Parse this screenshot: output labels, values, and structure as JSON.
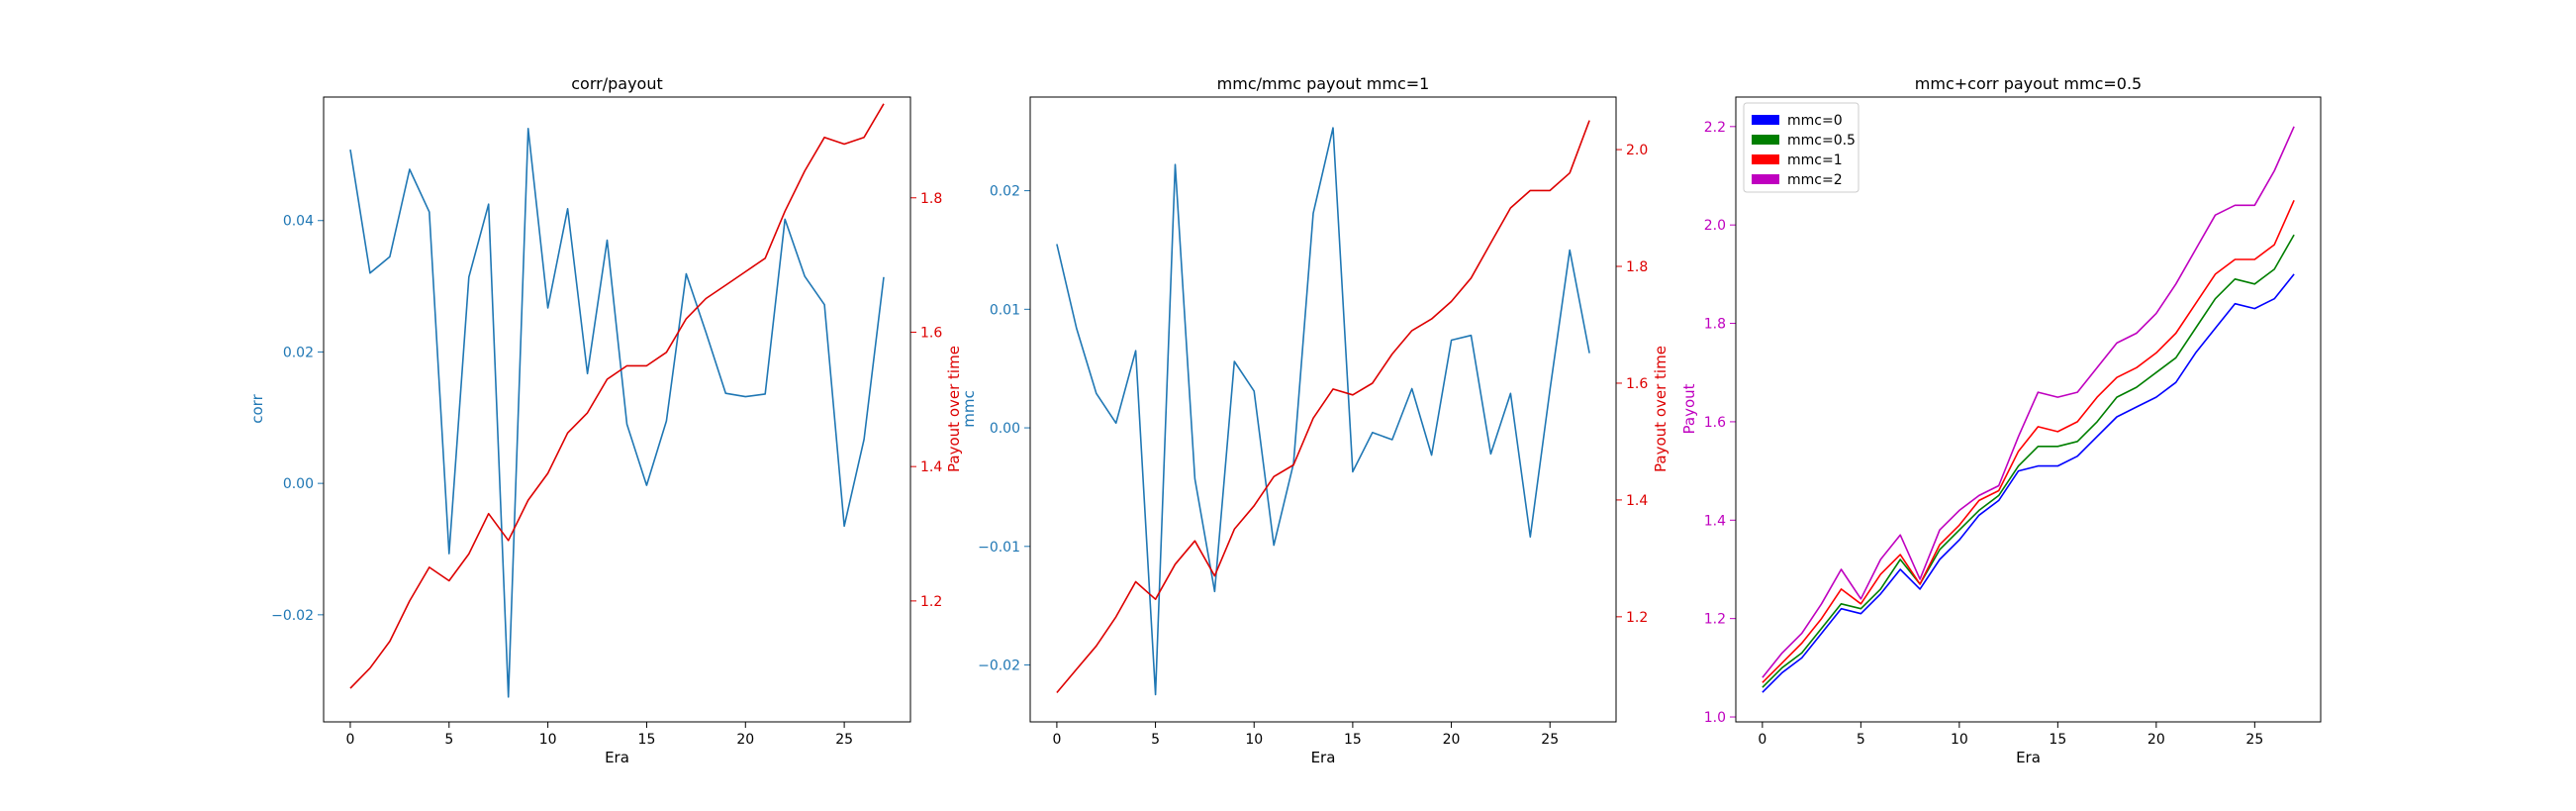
{
  "colors": {
    "corr": "#1f77b4",
    "mmc": "#1f77b4",
    "payout": "#dd0000",
    "right_axis": "#dd0000",
    "payout_axis": "#bf00bf"
  },
  "chart_data": [
    {
      "type": "line",
      "title": "corr/payout",
      "xlabel": "Era",
      "ylabel_left": "corr",
      "ylabel_right": "Payout over time",
      "x": [
        0,
        1,
        2,
        3,
        4,
        5,
        6,
        7,
        8,
        9,
        10,
        11,
        12,
        13,
        14,
        15,
        16,
        17,
        18,
        19,
        20,
        21,
        22,
        23,
        24,
        25,
        26,
        27
      ],
      "xlim": [
        -1.35,
        28.35
      ],
      "xticks": [
        0,
        5,
        10,
        15,
        20,
        25
      ],
      "xtick_labels": [
        "0",
        "5",
        "10",
        "15",
        "20",
        "25"
      ],
      "ylim_left": [
        -0.0363,
        0.0588
      ],
      "yticks_left": [
        -0.02,
        0.0,
        0.02,
        0.04
      ],
      "ytick_labels_left": [
        "−0.02",
        "0.00",
        "0.02",
        "0.04"
      ],
      "ylim_right": [
        1.02,
        1.95
      ],
      "yticks_right": [
        1.2,
        1.4,
        1.6,
        1.8
      ],
      "ytick_labels_right": [
        "1.2",
        "1.4",
        "1.6",
        "1.8"
      ],
      "series": [
        {
          "axis": "left",
          "color_key": "corr",
          "values": [
            0.0508,
            0.032,
            0.0345,
            0.0478,
            0.0413,
            -0.0107,
            0.0314,
            0.0425,
            -0.0325,
            0.054,
            0.0267,
            0.0418,
            0.0167,
            0.037,
            0.009,
            -0.0003,
            0.0095,
            0.0319,
            0.023,
            0.0137,
            0.0132,
            0.0136,
            0.0402,
            0.0315,
            0.0272,
            -0.0065,
            0.0067,
            0.0314
          ]
        },
        {
          "axis": "right",
          "color_key": "payout",
          "values": [
            1.07,
            1.1,
            1.14,
            1.2,
            1.25,
            1.23,
            1.27,
            1.33,
            1.29,
            1.35,
            1.39,
            1.45,
            1.48,
            1.53,
            1.55,
            1.55,
            1.57,
            1.62,
            1.65,
            1.67,
            1.69,
            1.71,
            1.78,
            1.84,
            1.89,
            1.88,
            1.89,
            1.94
          ]
        }
      ]
    },
    {
      "type": "line",
      "title": "mmc/mmc payout mmc=1",
      "xlabel": "Era",
      "ylabel_left": "mmc",
      "ylabel_right": "Payout over time",
      "x": [
        0,
        1,
        2,
        3,
        4,
        5,
        6,
        7,
        8,
        9,
        10,
        11,
        12,
        13,
        14,
        15,
        16,
        17,
        18,
        19,
        20,
        21,
        22,
        23,
        24,
        25,
        26,
        27
      ],
      "xlim": [
        -1.35,
        28.35
      ],
      "xticks": [
        0,
        5,
        10,
        15,
        20,
        25
      ],
      "xtick_labels": [
        "0",
        "5",
        "10",
        "15",
        "20",
        "25"
      ],
      "ylim_left": [
        -0.0248,
        0.0279
      ],
      "yticks_left": [
        -0.02,
        -0.01,
        0.0,
        0.01,
        0.02
      ],
      "ytick_labels_left": [
        "−0.02",
        "−0.01",
        "0.00",
        "0.01",
        "0.02"
      ],
      "ylim_right": [
        1.02,
        2.09
      ],
      "yticks_right": [
        1.2,
        1.4,
        1.6,
        1.8,
        2.0
      ],
      "ytick_labels_right": [
        "1.2",
        "1.4",
        "1.6",
        "1.8",
        "2.0"
      ],
      "series": [
        {
          "axis": "left",
          "color_key": "mmc",
          "values": [
            0.0155,
            0.0084,
            0.0029,
            0.0004,
            0.0065,
            -0.0225,
            0.0222,
            -0.0043,
            -0.0138,
            0.0056,
            0.0031,
            -0.0099,
            -0.003,
            0.0181,
            0.0253,
            -0.0037,
            -0.0004,
            -0.001,
            0.0033,
            -0.0023,
            0.0074,
            0.0078,
            -0.0022,
            0.0029,
            -0.0092,
            0.0032,
            0.015,
            0.0063
          ]
        },
        {
          "axis": "right",
          "color_key": "payout",
          "values": [
            1.07,
            1.11,
            1.15,
            1.2,
            1.26,
            1.23,
            1.29,
            1.33,
            1.27,
            1.35,
            1.39,
            1.44,
            1.46,
            1.54,
            1.59,
            1.58,
            1.6,
            1.65,
            1.69,
            1.71,
            1.74,
            1.78,
            1.84,
            1.9,
            1.93,
            1.93,
            1.96,
            2.05
          ]
        }
      ]
    },
    {
      "type": "line",
      "title": "mmc+corr payout mmc=0.5",
      "xlabel": "Era",
      "ylabel_left": "Payout",
      "x": [
        0,
        1,
        2,
        3,
        4,
        5,
        6,
        7,
        8,
        9,
        10,
        11,
        12,
        13,
        14,
        15,
        16,
        17,
        18,
        19,
        20,
        21,
        22,
        23,
        24,
        25,
        26,
        27
      ],
      "xlim": [
        -1.35,
        28.35
      ],
      "xticks": [
        0,
        5,
        10,
        15,
        20,
        25
      ],
      "xtick_labels": [
        "0",
        "5",
        "10",
        "15",
        "20",
        "25"
      ],
      "ylim_left": [
        0.99,
        2.26
      ],
      "yticks_left": [
        1.0,
        1.2,
        1.4,
        1.6,
        1.8,
        2.0,
        2.2
      ],
      "ytick_labels_left": [
        "1.0",
        "1.2",
        "1.4",
        "1.6",
        "1.8",
        "2.0",
        "2.2"
      ],
      "legend_position": "top-left",
      "series": [
        {
          "name": "mmc=0",
          "color": "#0000ff",
          "values": [
            1.05,
            1.09,
            1.12,
            1.17,
            1.22,
            1.21,
            1.25,
            1.3,
            1.26,
            1.32,
            1.36,
            1.41,
            1.44,
            1.5,
            1.51,
            1.51,
            1.53,
            1.57,
            1.61,
            1.63,
            1.65,
            1.68,
            1.74,
            1.79,
            1.84,
            1.83,
            1.85,
            1.9
          ]
        },
        {
          "name": "mmc=0.5",
          "color": "#007f00",
          "values": [
            1.06,
            1.1,
            1.13,
            1.18,
            1.23,
            1.22,
            1.26,
            1.32,
            1.27,
            1.34,
            1.38,
            1.42,
            1.45,
            1.51,
            1.55,
            1.55,
            1.56,
            1.6,
            1.65,
            1.67,
            1.7,
            1.73,
            1.79,
            1.85,
            1.89,
            1.88,
            1.91,
            1.98
          ]
        },
        {
          "name": "mmc=1",
          "color": "#ff0000",
          "values": [
            1.07,
            1.11,
            1.15,
            1.2,
            1.26,
            1.23,
            1.29,
            1.33,
            1.27,
            1.35,
            1.39,
            1.44,
            1.46,
            1.54,
            1.59,
            1.58,
            1.6,
            1.65,
            1.69,
            1.71,
            1.74,
            1.78,
            1.84,
            1.9,
            1.93,
            1.93,
            1.96,
            2.05
          ]
        },
        {
          "name": "mmc=2",
          "color": "#bf00bf",
          "values": [
            1.08,
            1.13,
            1.17,
            1.23,
            1.3,
            1.24,
            1.32,
            1.37,
            1.28,
            1.38,
            1.42,
            1.45,
            1.47,
            1.57,
            1.66,
            1.65,
            1.66,
            1.71,
            1.76,
            1.78,
            1.82,
            1.88,
            1.95,
            2.02,
            2.04,
            2.04,
            2.11,
            2.2
          ]
        }
      ]
    }
  ]
}
